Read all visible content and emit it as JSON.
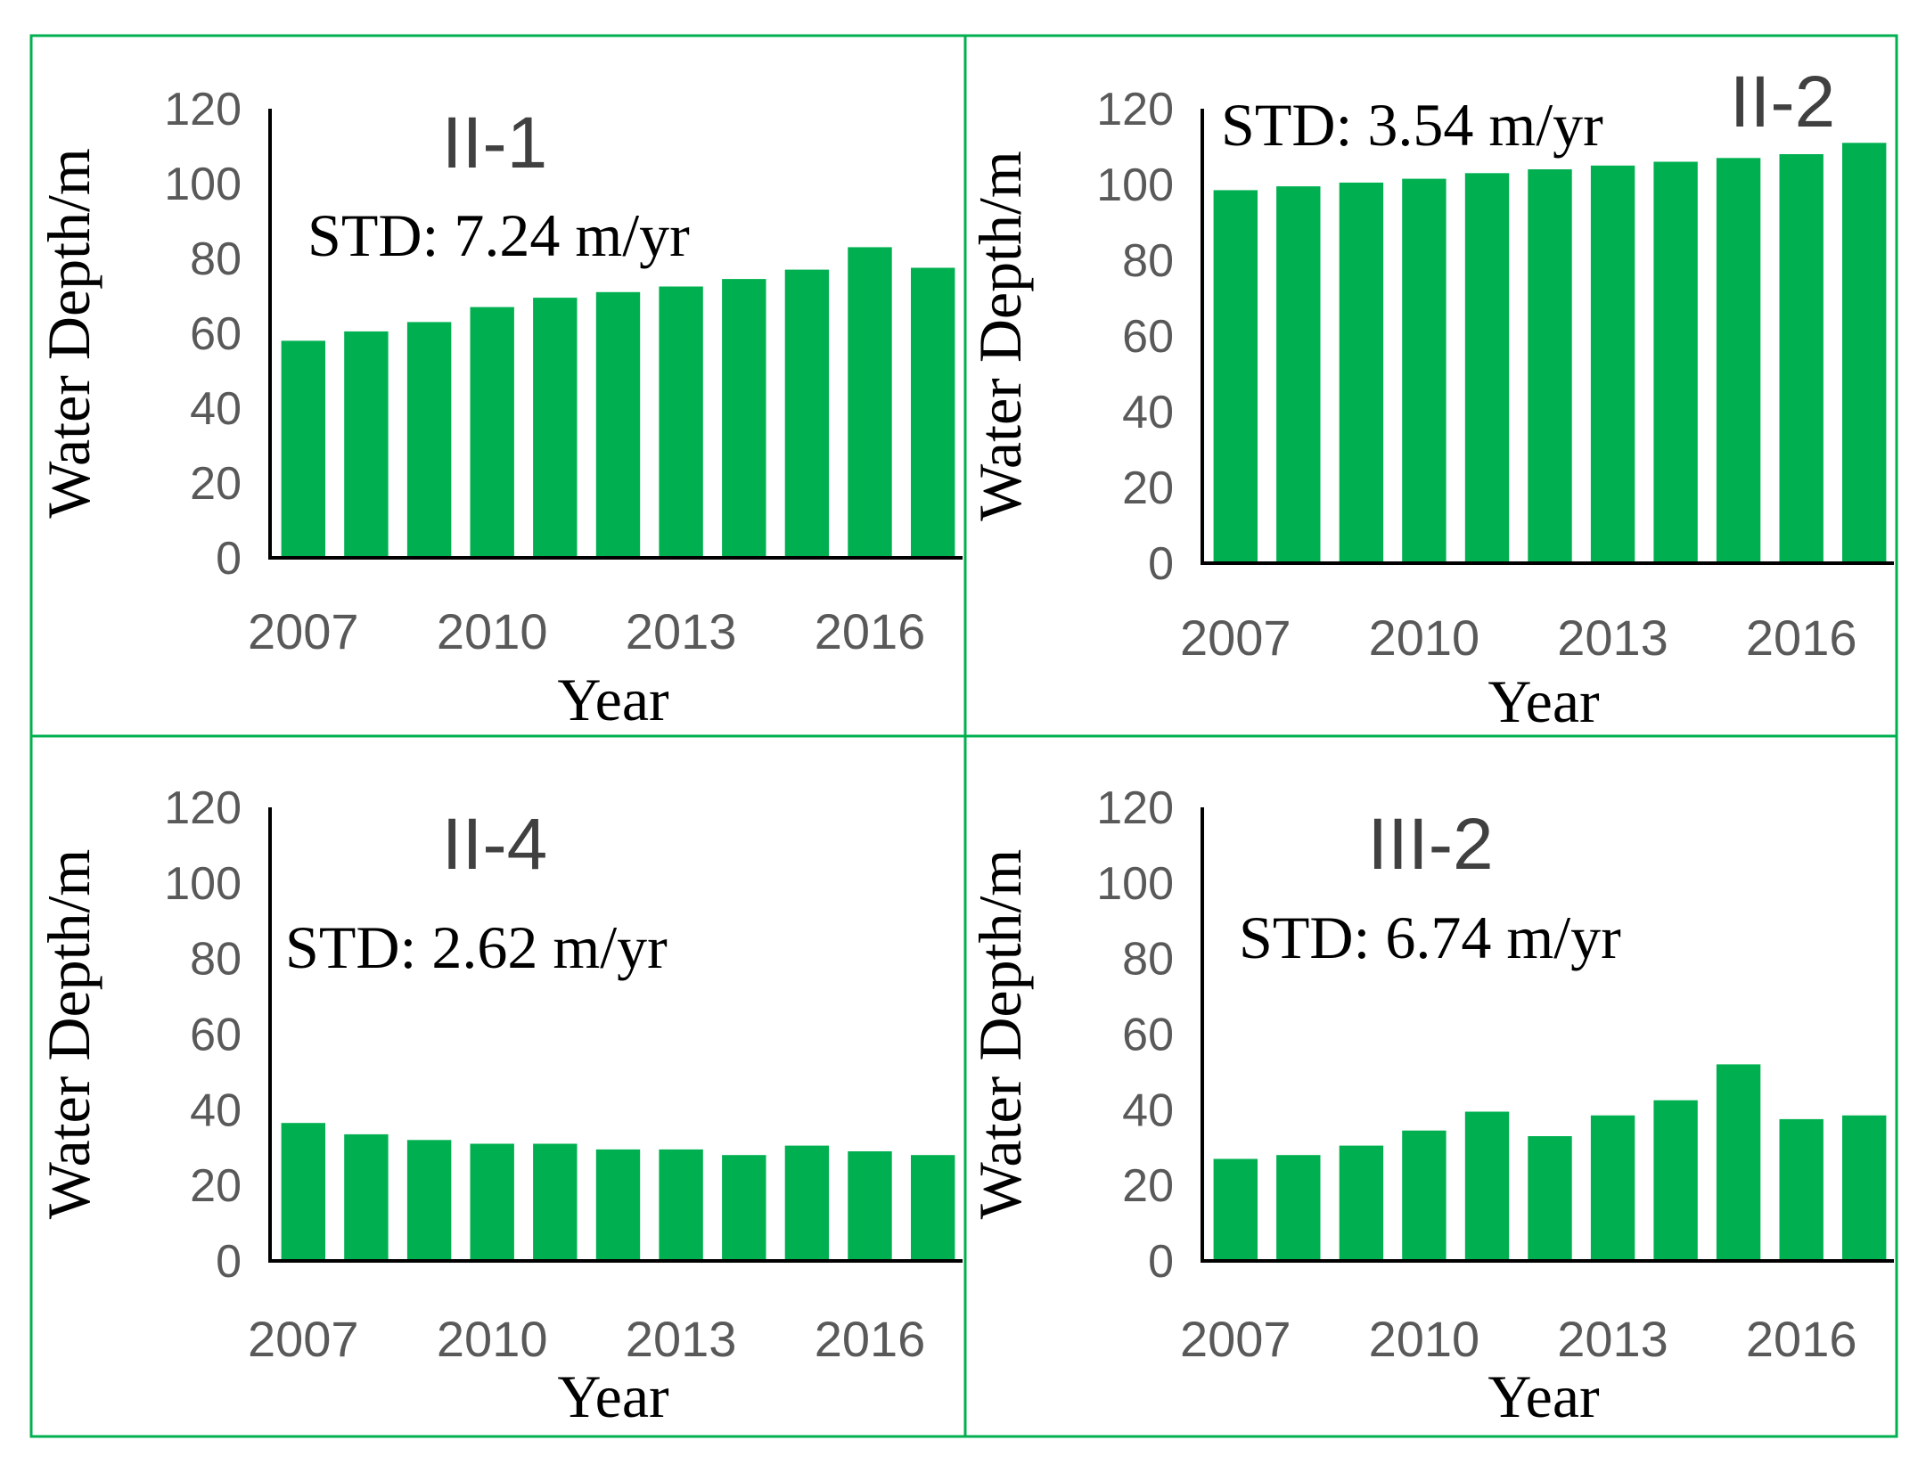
{
  "chart_data": [
    {
      "type": "bar",
      "title": "II-1",
      "annotation": "STD: 7.24 m/yr",
      "xlabel": "Year",
      "ylabel": "Water Depth/m",
      "ylim": [
        0,
        120
      ],
      "yticks": [
        "0",
        "20",
        "40",
        "60",
        "80",
        "100",
        "120"
      ],
      "xtick_labels": [
        "2007",
        "2010",
        "2013",
        "2016"
      ],
      "categories": [
        "2007",
        "2008",
        "2009",
        "2010",
        "2011",
        "2012",
        "2013",
        "2014",
        "2015",
        "2016",
        "2017"
      ],
      "values": [
        58,
        60.5,
        63,
        67,
        69.5,
        71,
        72.5,
        74.5,
        77,
        83,
        77.5
      ]
    },
    {
      "type": "bar",
      "title": "II-2",
      "annotation": "STD: 3.54 m/yr",
      "xlabel": "Year",
      "ylabel": "Water Depth/m",
      "ylim": [
        0,
        120
      ],
      "yticks": [
        "0",
        "20",
        "40",
        "60",
        "80",
        "100",
        "120"
      ],
      "xtick_labels": [
        "2007",
        "2010",
        "2013",
        "2016"
      ],
      "categories": [
        "2007",
        "2008",
        "2009",
        "2010",
        "2011",
        "2012",
        "2013",
        "2014",
        "2015",
        "2016",
        "2017"
      ],
      "values": [
        98.5,
        99.5,
        100.5,
        101.5,
        103,
        104,
        105,
        106,
        107,
        108,
        111
      ]
    },
    {
      "type": "bar",
      "title": "II-4",
      "annotation": "STD: 2.62 m/yr",
      "xlabel": "Year",
      "ylabel": "Water Depth/m",
      "ylim": [
        0,
        120
      ],
      "yticks": [
        "0",
        "20",
        "40",
        "60",
        "80",
        "100",
        "120"
      ],
      "xtick_labels": [
        "2007",
        "2010",
        "2013",
        "2016"
      ],
      "categories": [
        "2007",
        "2008",
        "2009",
        "2010",
        "2011",
        "2012",
        "2013",
        "2014",
        "2015",
        "2016",
        "2017"
      ],
      "values": [
        36.5,
        33.5,
        32,
        31,
        31,
        29.5,
        29.5,
        28,
        30.5,
        29,
        28
      ]
    },
    {
      "type": "bar",
      "title": "III-2",
      "annotation": "STD: 6.74 m/yr",
      "xlabel": "Year",
      "ylabel": "Water Depth/m",
      "ylim": [
        0,
        120
      ],
      "yticks": [
        "0",
        "20",
        "40",
        "60",
        "80",
        "100",
        "120"
      ],
      "xtick_labels": [
        "2007",
        "2010",
        "2013",
        "2016"
      ],
      "categories": [
        "2007",
        "2008",
        "2009",
        "2010",
        "2011",
        "2012",
        "2013",
        "2014",
        "2015",
        "2016",
        "2017"
      ],
      "values": [
        27,
        28,
        30.5,
        34.5,
        39.5,
        33,
        38.5,
        42.5,
        52,
        37.5,
        38.5
      ]
    }
  ]
}
